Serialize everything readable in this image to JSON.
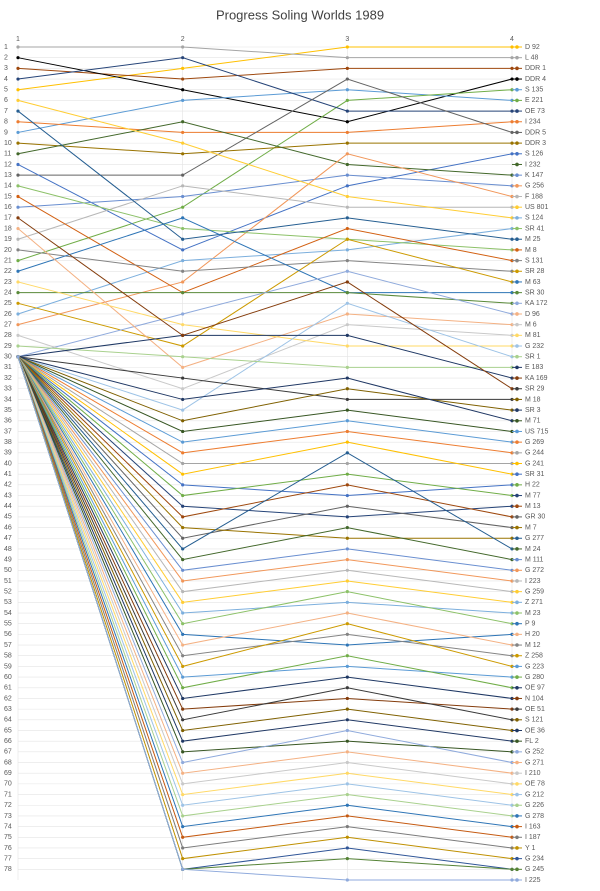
{
  "chart_data": {
    "type": "line",
    "title": "Progress Soling Worlds 1989",
    "categories": [
      "1",
      "2",
      "3",
      "4"
    ],
    "ylim": [
      1,
      79
    ],
    "y_inverted": true,
    "grid": true,
    "legend": "right",
    "yticks": [
      1,
      2,
      3,
      4,
      5,
      6,
      7,
      8,
      9,
      10,
      11,
      12,
      13,
      14,
      15,
      16,
      17,
      18,
      19,
      20,
      21,
      22,
      23,
      24,
      25,
      26,
      27,
      28,
      29,
      30,
      31,
      32,
      33,
      34,
      35,
      36,
      37,
      38,
      39,
      40,
      41,
      42,
      43,
      44,
      45,
      46,
      47,
      48,
      49,
      50,
      51,
      52,
      53,
      54,
      55,
      56,
      57,
      58,
      59,
      60,
      61,
      62,
      63,
      64,
      65,
      66,
      67,
      68,
      69,
      70,
      71,
      72,
      73,
      74,
      75,
      76,
      77,
      78
    ],
    "series": [
      {
        "name": "D 92",
        "color": "#ffc000",
        "values": [
          5,
          3,
          1,
          1
        ]
      },
      {
        "name": "L 48",
        "color": "#a5a5a5",
        "values": [
          1,
          1,
          2,
          2
        ]
      },
      {
        "name": "DDR 1",
        "color": "#9e480e",
        "values": [
          3,
          4,
          3,
          3
        ]
      },
      {
        "name": "DDR 4",
        "color": "#000000",
        "values": [
          2,
          5,
          8,
          4
        ]
      },
      {
        "name": "S 135",
        "color": "#5b9bd5",
        "values": [
          9,
          6,
          5,
          6
        ]
      },
      {
        "name": "E 221",
        "color": "#70ad47",
        "values": [
          21,
          16,
          6,
          5
        ]
      },
      {
        "name": "OE 73",
        "color": "#264478",
        "values": [
          4,
          2,
          7,
          7
        ]
      },
      {
        "name": "I 234",
        "color": "#ed7d31",
        "values": [
          8,
          9,
          9,
          8
        ]
      },
      {
        "name": "DDR 5",
        "color": "#636363",
        "values": [
          13,
          13,
          4,
          9
        ]
      },
      {
        "name": "DDR 3",
        "color": "#997300",
        "values": [
          10,
          11,
          10,
          10
        ]
      },
      {
        "name": "S 126",
        "color": "#4472c4",
        "values": [
          12,
          20,
          14,
          11
        ]
      },
      {
        "name": "I 232",
        "color": "#43682b",
        "values": [
          11,
          8,
          12,
          13
        ]
      },
      {
        "name": "K 147",
        "color": "#698ed0",
        "values": [
          16,
          15,
          13,
          14
        ]
      },
      {
        "name": "G 256",
        "color": "#f1975a",
        "values": [
          27,
          23,
          11,
          15
        ]
      },
      {
        "name": "F 188",
        "color": "#b7b7b7",
        "values": [
          19,
          14,
          16,
          16
        ]
      },
      {
        "name": "US 801",
        "color": "#ffcd33",
        "values": [
          6,
          10,
          15,
          17
        ]
      },
      {
        "name": "S 124",
        "color": "#7cafdd",
        "values": [
          26,
          21,
          20,
          18
        ]
      },
      {
        "name": "SR 41",
        "color": "#8cc168",
        "values": [
          14,
          18,
          19,
          20
        ]
      },
      {
        "name": "M 25",
        "color": "#255e91",
        "values": [
          7,
          19,
          17,
          19
        ]
      },
      {
        "name": "M 8",
        "color": "#d26012",
        "values": [
          15,
          24,
          18,
          21
        ]
      },
      {
        "name": "S 131",
        "color": "#848484",
        "values": [
          20,
          22,
          21,
          22
        ]
      },
      {
        "name": "SR 28",
        "color": "#cc9a00",
        "values": [
          25,
          29,
          19,
          23
        ]
      },
      {
        "name": "M 63",
        "color": "#2e75b6",
        "values": [
          22,
          17,
          24,
          24
        ]
      },
      {
        "name": "SR 30",
        "color": "#5a8a3a",
        "values": [
          24,
          24,
          24,
          25
        ]
      },
      {
        "name": "KA 172",
        "color": "#8faadc",
        "values": [
          30,
          26,
          22,
          26
        ]
      },
      {
        "name": "D 96",
        "color": "#f4b183",
        "values": [
          18,
          31,
          26,
          27
        ]
      },
      {
        "name": "M 6",
        "color": "#c9c9c9",
        "values": [
          28,
          33,
          27,
          28
        ]
      },
      {
        "name": "M 81",
        "color": "#ffd966",
        "values": [
          23,
          27,
          29,
          29
        ]
      },
      {
        "name": "G 232",
        "color": "#9dc3e6",
        "values": [
          30,
          35,
          25,
          30
        ]
      },
      {
        "name": "SR 1",
        "color": "#a9d18e",
        "values": [
          29,
          30,
          31,
          31
        ]
      },
      {
        "name": "E 183",
        "color": "#1f3864",
        "values": [
          30,
          28,
          28,
          32
        ]
      },
      {
        "name": "KA 169",
        "color": "#843c0c",
        "values": [
          17,
          28,
          23,
          33
        ]
      },
      {
        "name": "SR 29",
        "color": "#3a3a3a",
        "values": [
          30,
          32,
          34,
          34
        ]
      },
      {
        "name": "M 18",
        "color": "#7f6000",
        "values": [
          30,
          36,
          33,
          35
        ]
      },
      {
        "name": "SR 3",
        "color": "#203864",
        "values": [
          30,
          34,
          32,
          36
        ]
      },
      {
        "name": "M 71",
        "color": "#375623",
        "values": [
          30,
          37,
          35,
          37
        ]
      },
      {
        "name": "US 715",
        "color": "#5b9bd5",
        "values": [
          30,
          38,
          36,
          38
        ]
      },
      {
        "name": "G 269",
        "color": "#ed7d31",
        "values": [
          30,
          39,
          37,
          39
        ]
      },
      {
        "name": "G 244",
        "color": "#a5a5a5",
        "values": [
          30,
          40,
          40,
          40
        ]
      },
      {
        "name": "G 241",
        "color": "#ffc000",
        "values": [
          30,
          41,
          38,
          41
        ]
      },
      {
        "name": "SR 31",
        "color": "#4472c4",
        "values": [
          30,
          42,
          43,
          42
        ]
      },
      {
        "name": "H 22",
        "color": "#70ad47",
        "values": [
          30,
          43,
          41,
          43
        ]
      },
      {
        "name": "M 77",
        "color": "#264478",
        "values": [
          30,
          44,
          45,
          44
        ]
      },
      {
        "name": "M 13",
        "color": "#9e480e",
        "values": [
          30,
          45,
          42,
          45
        ]
      },
      {
        "name": "GR 30",
        "color": "#636363",
        "values": [
          30,
          47,
          44,
          46
        ]
      },
      {
        "name": "M 7",
        "color": "#997300",
        "values": [
          30,
          46,
          47,
          47
        ]
      },
      {
        "name": "G 277",
        "color": "#255e91",
        "values": [
          30,
          48,
          39,
          48
        ]
      },
      {
        "name": "M 24",
        "color": "#43682b",
        "values": [
          30,
          49,
          46,
          49
        ]
      },
      {
        "name": "M 111",
        "color": "#698ed0",
        "values": [
          30,
          50,
          48,
          50
        ]
      },
      {
        "name": "G 272",
        "color": "#f1975a",
        "values": [
          30,
          51,
          49,
          51
        ]
      },
      {
        "name": "I 223",
        "color": "#b7b7b7",
        "values": [
          30,
          52,
          50,
          52
        ]
      },
      {
        "name": "G 259",
        "color": "#ffcd33",
        "values": [
          30,
          53,
          51,
          53
        ]
      },
      {
        "name": "Z 271",
        "color": "#7cafdd",
        "values": [
          30,
          54,
          53,
          54
        ]
      },
      {
        "name": "M 23",
        "color": "#8cc168",
        "values": [
          30,
          55,
          52,
          55
        ]
      },
      {
        "name": "P 9",
        "color": "#2e75b6",
        "values": [
          30,
          56,
          57,
          56
        ]
      },
      {
        "name": "H 20",
        "color": "#f4b183",
        "values": [
          30,
          57,
          54,
          57
        ]
      },
      {
        "name": "M 12",
        "color": "#848484",
        "values": [
          30,
          58,
          56,
          58
        ]
      },
      {
        "name": "Z 258",
        "color": "#cc9a00",
        "values": [
          30,
          59,
          55,
          59
        ]
      },
      {
        "name": "G 223",
        "color": "#5b9bd5",
        "values": [
          30,
          60,
          59,
          60
        ]
      },
      {
        "name": "G 280",
        "color": "#70ad47",
        "values": [
          30,
          61,
          58,
          61
        ]
      },
      {
        "name": "OE 97",
        "color": "#1f3864",
        "values": [
          30,
          62,
          60,
          62
        ]
      },
      {
        "name": "N 104",
        "color": "#843c0c",
        "values": [
          30,
          63,
          62,
          63
        ]
      },
      {
        "name": "OE 51",
        "color": "#3a3a3a",
        "values": [
          30,
          64,
          61,
          64
        ]
      },
      {
        "name": "S 121",
        "color": "#7f6000",
        "values": [
          30,
          65,
          63,
          65
        ]
      },
      {
        "name": "OE 36",
        "color": "#203864",
        "values": [
          30,
          66,
          64,
          66
        ]
      },
      {
        "name": "FL 2",
        "color": "#375623",
        "values": [
          30,
          67,
          66,
          67
        ]
      },
      {
        "name": "G 252",
        "color": "#8faadc",
        "values": [
          30,
          68,
          65,
          68
        ]
      },
      {
        "name": "G 271",
        "color": "#f4b183",
        "values": [
          30,
          69,
          67,
          69
        ]
      },
      {
        "name": "I 210",
        "color": "#c9c9c9",
        "values": [
          30,
          70,
          68,
          70
        ]
      },
      {
        "name": "OE 78",
        "color": "#ffd966",
        "values": [
          30,
          71,
          69,
          71
        ]
      },
      {
        "name": "G 212",
        "color": "#9dc3e6",
        "values": [
          30,
          72,
          70,
          72
        ]
      },
      {
        "name": "G 226",
        "color": "#a9d18e",
        "values": [
          30,
          73,
          71,
          73
        ]
      },
      {
        "name": "G 278",
        "color": "#2e75b6",
        "values": [
          30,
          74,
          72,
          74
        ]
      },
      {
        "name": "I 163",
        "color": "#c55a11",
        "values": [
          30,
          75,
          73,
          75
        ]
      },
      {
        "name": "I 187",
        "color": "#7b7b7b",
        "values": [
          30,
          76,
          74,
          76
        ]
      },
      {
        "name": "Y 1",
        "color": "#bf9000",
        "values": [
          30,
          77,
          75,
          77
        ]
      },
      {
        "name": "G 234",
        "color": "#2f5597",
        "values": [
          30,
          78,
          76,
          78
        ]
      },
      {
        "name": "G 245",
        "color": "#548235",
        "values": [
          30,
          78,
          77,
          78
        ]
      },
      {
        "name": "I 225",
        "color": "#8faadc",
        "values": [
          30,
          78,
          79,
          79
        ]
      }
    ]
  }
}
